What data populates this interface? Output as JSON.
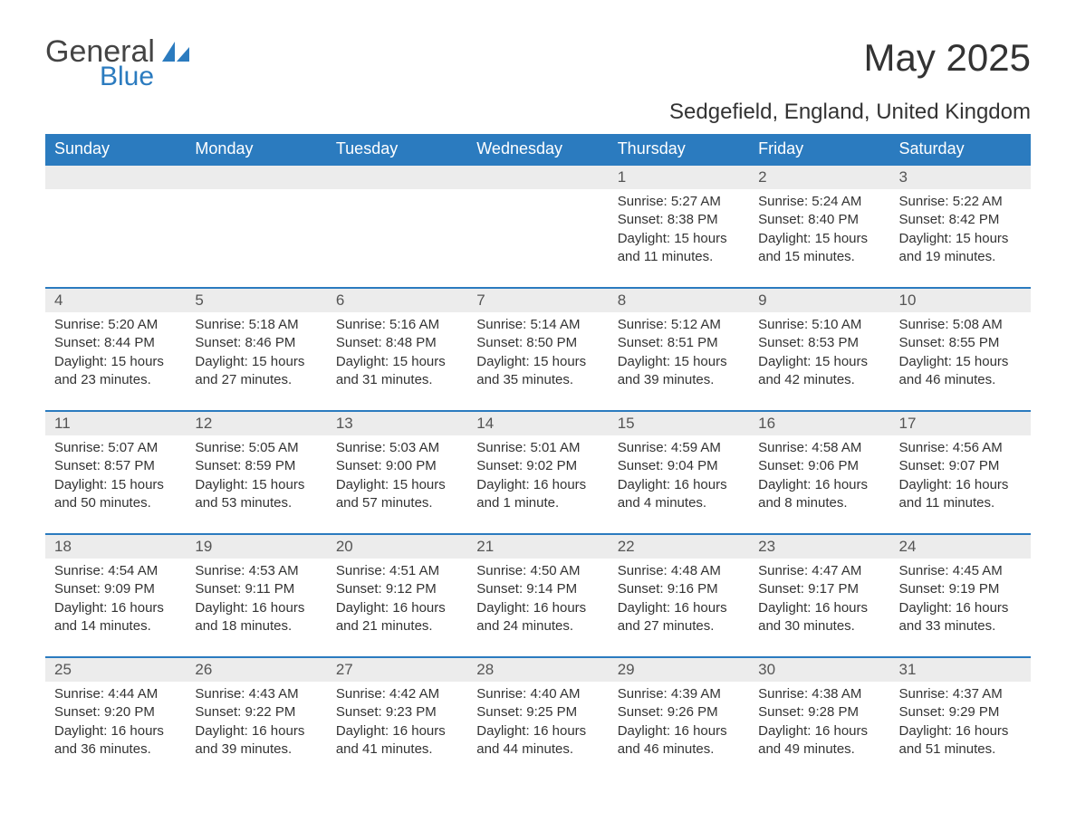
{
  "logo": {
    "text1": "General",
    "text2": "Blue"
  },
  "title": "May 2025",
  "location": "Sedgefield, England, United Kingdom",
  "colors": {
    "accent": "#2b7bbf",
    "header_row_bg": "#ececec",
    "text": "#333333",
    "bg": "#ffffff"
  },
  "weekdays": [
    "Sunday",
    "Monday",
    "Tuesday",
    "Wednesday",
    "Thursday",
    "Friday",
    "Saturday"
  ],
  "layout": {
    "first_weekday_index": 4,
    "days_in_month": 31,
    "cols": 7,
    "rows": 5
  },
  "days": [
    {
      "n": 1,
      "sunrise": "5:27 AM",
      "sunset": "8:38 PM",
      "dh": 15,
      "dm": 11
    },
    {
      "n": 2,
      "sunrise": "5:24 AM",
      "sunset": "8:40 PM",
      "dh": 15,
      "dm": 15
    },
    {
      "n": 3,
      "sunrise": "5:22 AM",
      "sunset": "8:42 PM",
      "dh": 15,
      "dm": 19
    },
    {
      "n": 4,
      "sunrise": "5:20 AM",
      "sunset": "8:44 PM",
      "dh": 15,
      "dm": 23
    },
    {
      "n": 5,
      "sunrise": "5:18 AM",
      "sunset": "8:46 PM",
      "dh": 15,
      "dm": 27
    },
    {
      "n": 6,
      "sunrise": "5:16 AM",
      "sunset": "8:48 PM",
      "dh": 15,
      "dm": 31
    },
    {
      "n": 7,
      "sunrise": "5:14 AM",
      "sunset": "8:50 PM",
      "dh": 15,
      "dm": 35
    },
    {
      "n": 8,
      "sunrise": "5:12 AM",
      "sunset": "8:51 PM",
      "dh": 15,
      "dm": 39
    },
    {
      "n": 9,
      "sunrise": "5:10 AM",
      "sunset": "8:53 PM",
      "dh": 15,
      "dm": 42
    },
    {
      "n": 10,
      "sunrise": "5:08 AM",
      "sunset": "8:55 PM",
      "dh": 15,
      "dm": 46
    },
    {
      "n": 11,
      "sunrise": "5:07 AM",
      "sunset": "8:57 PM",
      "dh": 15,
      "dm": 50
    },
    {
      "n": 12,
      "sunrise": "5:05 AM",
      "sunset": "8:59 PM",
      "dh": 15,
      "dm": 53
    },
    {
      "n": 13,
      "sunrise": "5:03 AM",
      "sunset": "9:00 PM",
      "dh": 15,
      "dm": 57
    },
    {
      "n": 14,
      "sunrise": "5:01 AM",
      "sunset": "9:02 PM",
      "dh": 16,
      "dm": 1
    },
    {
      "n": 15,
      "sunrise": "4:59 AM",
      "sunset": "9:04 PM",
      "dh": 16,
      "dm": 4
    },
    {
      "n": 16,
      "sunrise": "4:58 AM",
      "sunset": "9:06 PM",
      "dh": 16,
      "dm": 8
    },
    {
      "n": 17,
      "sunrise": "4:56 AM",
      "sunset": "9:07 PM",
      "dh": 16,
      "dm": 11
    },
    {
      "n": 18,
      "sunrise": "4:54 AM",
      "sunset": "9:09 PM",
      "dh": 16,
      "dm": 14
    },
    {
      "n": 19,
      "sunrise": "4:53 AM",
      "sunset": "9:11 PM",
      "dh": 16,
      "dm": 18
    },
    {
      "n": 20,
      "sunrise": "4:51 AM",
      "sunset": "9:12 PM",
      "dh": 16,
      "dm": 21
    },
    {
      "n": 21,
      "sunrise": "4:50 AM",
      "sunset": "9:14 PM",
      "dh": 16,
      "dm": 24
    },
    {
      "n": 22,
      "sunrise": "4:48 AM",
      "sunset": "9:16 PM",
      "dh": 16,
      "dm": 27
    },
    {
      "n": 23,
      "sunrise": "4:47 AM",
      "sunset": "9:17 PM",
      "dh": 16,
      "dm": 30
    },
    {
      "n": 24,
      "sunrise": "4:45 AM",
      "sunset": "9:19 PM",
      "dh": 16,
      "dm": 33
    },
    {
      "n": 25,
      "sunrise": "4:44 AM",
      "sunset": "9:20 PM",
      "dh": 16,
      "dm": 36
    },
    {
      "n": 26,
      "sunrise": "4:43 AM",
      "sunset": "9:22 PM",
      "dh": 16,
      "dm": 39
    },
    {
      "n": 27,
      "sunrise": "4:42 AM",
      "sunset": "9:23 PM",
      "dh": 16,
      "dm": 41
    },
    {
      "n": 28,
      "sunrise": "4:40 AM",
      "sunset": "9:25 PM",
      "dh": 16,
      "dm": 44
    },
    {
      "n": 29,
      "sunrise": "4:39 AM",
      "sunset": "9:26 PM",
      "dh": 16,
      "dm": 46
    },
    {
      "n": 30,
      "sunrise": "4:38 AM",
      "sunset": "9:28 PM",
      "dh": 16,
      "dm": 49
    },
    {
      "n": 31,
      "sunrise": "4:37 AM",
      "sunset": "9:29 PM",
      "dh": 16,
      "dm": 51
    }
  ],
  "labels": {
    "sunrise": "Sunrise: ",
    "sunset": "Sunset: ",
    "daylight_prefix": "Daylight: ",
    "hours_word": " hours",
    "and_word": "and ",
    "minutes_word": " minutes."
  }
}
